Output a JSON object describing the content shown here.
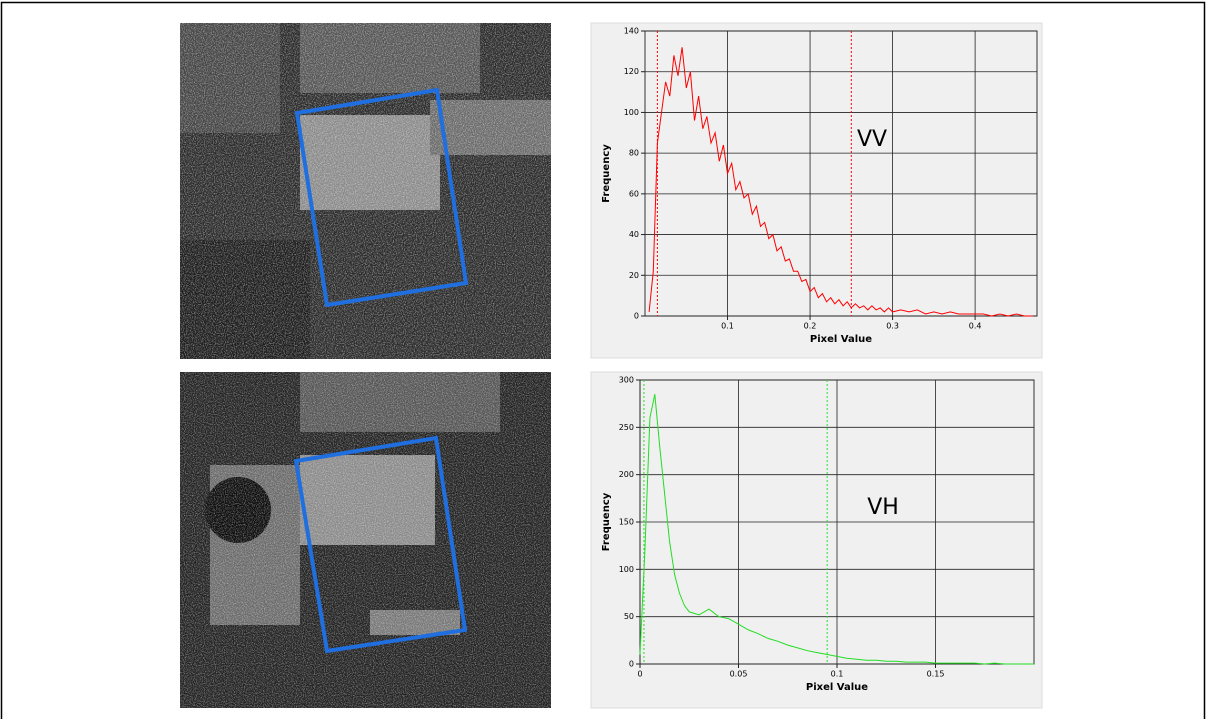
{
  "chart_data": [
    {
      "type": "line",
      "annotation": "VV",
      "xlabel": "Pixel Value",
      "ylabel": "Frequency",
      "color": "#ff0000",
      "grid": true,
      "xlim": [
        0,
        0.475
      ],
      "ylim": [
        0,
        140
      ],
      "xticks": [
        0.1,
        0.2,
        0.3,
        0.4
      ],
      "yticks": [
        0,
        20,
        40,
        60,
        80,
        100,
        120,
        140
      ],
      "vlines": [
        0.015,
        0.25
      ],
      "x": [
        0.005,
        0.01,
        0.015,
        0.02,
        0.025,
        0.03,
        0.035,
        0.04,
        0.045,
        0.05,
        0.055,
        0.06,
        0.065,
        0.07,
        0.075,
        0.08,
        0.085,
        0.09,
        0.095,
        0.1,
        0.105,
        0.11,
        0.115,
        0.12,
        0.125,
        0.13,
        0.135,
        0.14,
        0.145,
        0.15,
        0.155,
        0.16,
        0.165,
        0.17,
        0.175,
        0.18,
        0.185,
        0.19,
        0.195,
        0.2,
        0.205,
        0.21,
        0.215,
        0.22,
        0.225,
        0.23,
        0.235,
        0.24,
        0.245,
        0.25,
        0.255,
        0.26,
        0.265,
        0.27,
        0.275,
        0.28,
        0.285,
        0.29,
        0.295,
        0.3,
        0.31,
        0.32,
        0.33,
        0.34,
        0.35,
        0.36,
        0.37,
        0.38,
        0.39,
        0.4,
        0.41,
        0.42,
        0.43,
        0.44,
        0.45,
        0.46,
        0.47
      ],
      "values": [
        2,
        22,
        85,
        100,
        115,
        108,
        128,
        118,
        132,
        112,
        120,
        96,
        108,
        92,
        98,
        85,
        90,
        76,
        84,
        70,
        75,
        62,
        66,
        58,
        60,
        50,
        54,
        44,
        46,
        38,
        40,
        32,
        34,
        27,
        28,
        22,
        22,
        17,
        18,
        12,
        14,
        9,
        11,
        7,
        9,
        6,
        8,
        5,
        7,
        4,
        6,
        4,
        5,
        3,
        5,
        3,
        4,
        2,
        4,
        2,
        3,
        2,
        3,
        1,
        2,
        1,
        2,
        1,
        1,
        1,
        1,
        0,
        1,
        0,
        1,
        0,
        0
      ]
    },
    {
      "type": "line",
      "annotation": "VH",
      "xlabel": "Pixel Value",
      "ylabel": "Frequency",
      "color": "#22dd22",
      "grid": true,
      "xlim": [
        0,
        0.2
      ],
      "ylim": [
        0,
        300
      ],
      "xticks": [
        0,
        0.05,
        0.1,
        0.15
      ],
      "yticks": [
        0,
        50,
        100,
        150,
        200,
        250,
        300
      ],
      "vlines": [
        0.002,
        0.095
      ],
      "x": [
        0,
        0.0025,
        0.005,
        0.0075,
        0.01,
        0.0125,
        0.015,
        0.0175,
        0.02,
        0.0225,
        0.025,
        0.03,
        0.035,
        0.04,
        0.045,
        0.05,
        0.055,
        0.06,
        0.065,
        0.07,
        0.075,
        0.08,
        0.085,
        0.09,
        0.095,
        0.1,
        0.105,
        0.11,
        0.115,
        0.12,
        0.125,
        0.13,
        0.135,
        0.14,
        0.145,
        0.15,
        0.155,
        0.16,
        0.165,
        0.17,
        0.175,
        0.18,
        0.185,
        0.19,
        0.195,
        0.2
      ],
      "values": [
        10,
        120,
        260,
        285,
        230,
        180,
        130,
        95,
        75,
        62,
        55,
        52,
        58,
        50,
        48,
        42,
        36,
        32,
        27,
        24,
        20,
        17,
        14,
        12,
        10,
        8,
        6,
        5,
        4,
        4,
        3,
        3,
        2,
        2,
        2,
        1,
        1,
        1,
        1,
        1,
        0,
        1,
        0,
        0,
        0,
        0
      ]
    }
  ]
}
